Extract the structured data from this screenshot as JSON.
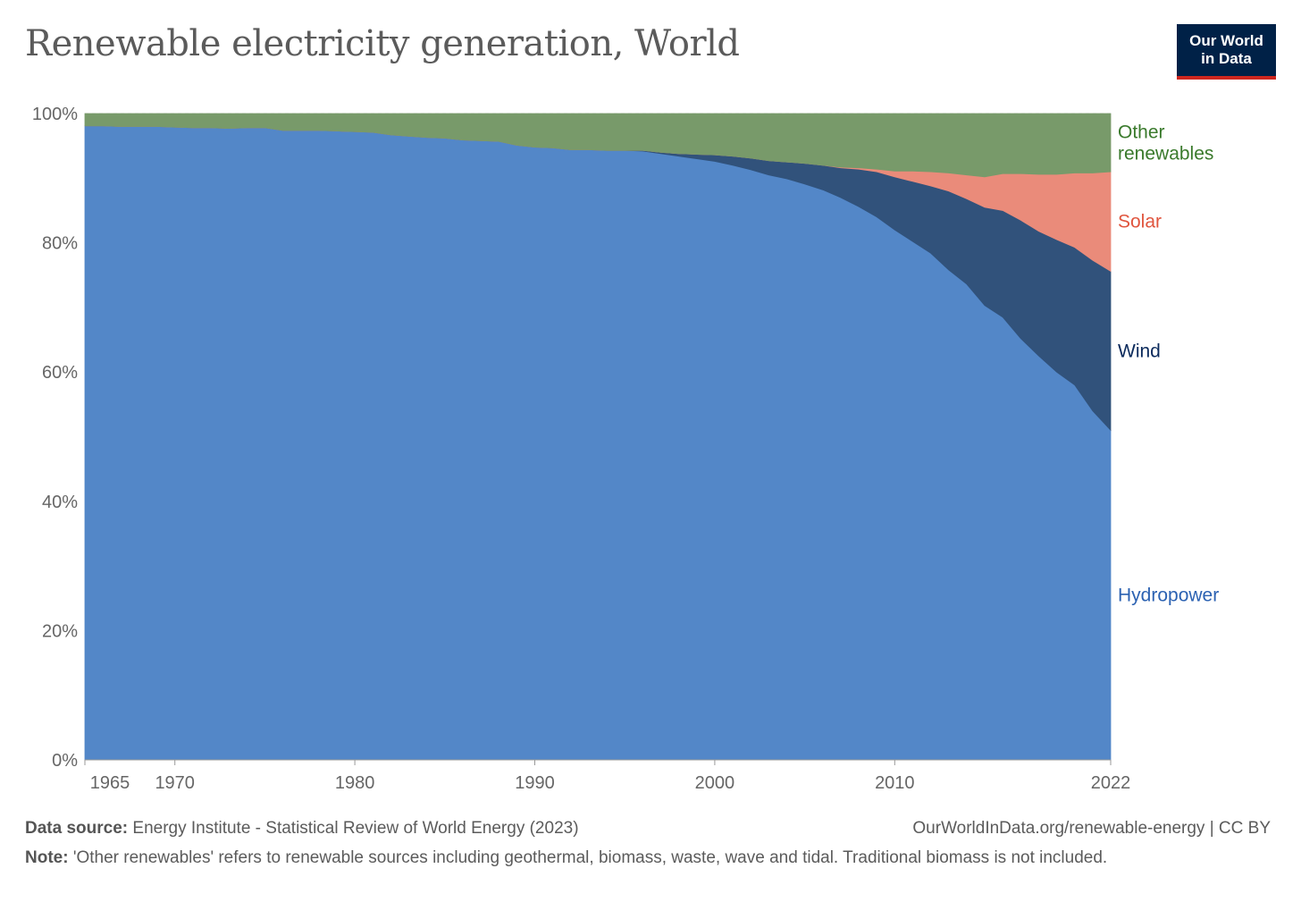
{
  "header": {
    "title": "Renewable electricity generation, World",
    "logo_line1": "Our World",
    "logo_line2": "in Data"
  },
  "footer": {
    "source_label": "Data source:",
    "source_text": "Energy Institute - Statistical Review of World Energy (2023)",
    "url": "OurWorldInData.org/renewable-energy | CC BY",
    "note_label": "Note:",
    "note_text": "'Other renewables' refers to renewable sources including geothermal, biomass, waste, wave and tidal. Traditional biomass is not included."
  },
  "chart_data": {
    "type": "area",
    "stacked": true,
    "relative": true,
    "title": "Renewable electricity generation, World",
    "xlabel": "",
    "ylabel": "",
    "ylim": [
      0,
      100
    ],
    "xlim": [
      1965,
      2022
    ],
    "y_ticks": [
      "0%",
      "20%",
      "40%",
      "60%",
      "80%",
      "100%"
    ],
    "y_tick_values": [
      0,
      20,
      40,
      60,
      80,
      100
    ],
    "x_ticks": [
      "1965",
      "1970",
      "1980",
      "1990",
      "2000",
      "2010",
      "2022"
    ],
    "x_tick_values": [
      1965,
      1970,
      1980,
      1990,
      2000,
      2010,
      2022
    ],
    "grid": true,
    "legend": "right",
    "x": [
      1965,
      1966,
      1967,
      1968,
      1969,
      1970,
      1971,
      1972,
      1973,
      1974,
      1975,
      1976,
      1977,
      1978,
      1979,
      1980,
      1981,
      1982,
      1983,
      1984,
      1985,
      1986,
      1987,
      1988,
      1989,
      1990,
      1991,
      1992,
      1993,
      1994,
      1995,
      1996,
      1997,
      1998,
      1999,
      2000,
      2001,
      2002,
      2003,
      2004,
      2005,
      2006,
      2007,
      2008,
      2009,
      2010,
      2011,
      2012,
      2013,
      2014,
      2015,
      2016,
      2017,
      2018,
      2019,
      2020,
      2021,
      2022
    ],
    "series": [
      {
        "name": "Hydropower",
        "color": "#5387c8",
        "label_color": "#2c62b2",
        "values": [
          98.1,
          98.1,
          98.0,
          98.0,
          98.0,
          97.9,
          97.8,
          97.8,
          97.7,
          97.8,
          97.8,
          97.4,
          97.4,
          97.4,
          97.3,
          97.2,
          97.1,
          96.7,
          96.5,
          96.3,
          96.2,
          95.9,
          95.8,
          95.7,
          95.1,
          94.8,
          94.7,
          94.4,
          94.4,
          94.3,
          94.3,
          94.2,
          93.8,
          93.4,
          93.0,
          92.6,
          92.0,
          91.3,
          90.5,
          89.9,
          89.1,
          88.2,
          87.0,
          85.6,
          84.0,
          82.0,
          80.2,
          78.4,
          75.8,
          73.6,
          70.3,
          68.5,
          65.2,
          62.5,
          60.0,
          58.0,
          54.0,
          51.0
        ]
      },
      {
        "name": "Wind",
        "color": "#31527b",
        "label_color": "#0b2a5c",
        "values": [
          0,
          0,
          0,
          0,
          0,
          0,
          0,
          0,
          0,
          0,
          0,
          0,
          0,
          0,
          0,
          0,
          0,
          0,
          0,
          0,
          0,
          0,
          0,
          0,
          0,
          0,
          0,
          0,
          0,
          0,
          0,
          0.1,
          0.2,
          0.4,
          0.7,
          1.0,
          1.4,
          1.8,
          2.2,
          2.6,
          3.2,
          3.8,
          4.6,
          5.8,
          7.0,
          8.2,
          9.3,
          10.4,
          12.2,
          13.2,
          15.2,
          16.5,
          18.3,
          19.3,
          20.5,
          21.3,
          23.3,
          24.6
        ]
      },
      {
        "name": "Solar",
        "color": "#ea8b7a",
        "label_color": "#e0553e",
        "values": [
          0,
          0,
          0,
          0,
          0,
          0,
          0,
          0,
          0,
          0,
          0,
          0,
          0,
          0,
          0,
          0,
          0,
          0,
          0,
          0,
          0,
          0,
          0,
          0,
          0,
          0,
          0,
          0,
          0,
          0,
          0,
          0,
          0,
          0,
          0,
          0,
          0,
          0,
          0,
          0,
          0,
          0,
          0.1,
          0.2,
          0.4,
          0.9,
          1.6,
          2.2,
          2.8,
          3.7,
          4.7,
          5.7,
          7.2,
          8.8,
          10.1,
          11.5,
          13.5,
          15.4
        ]
      },
      {
        "name": "Other renewables",
        "label_lines": [
          "Other",
          "renewables"
        ],
        "color": "#789a6a",
        "label_color": "#3a7a2c",
        "values": [
          1.9,
          1.9,
          2.0,
          2.0,
          2.0,
          2.1,
          2.2,
          2.2,
          2.3,
          2.2,
          2.2,
          2.6,
          2.6,
          2.6,
          2.7,
          2.8,
          2.9,
          3.3,
          3.5,
          3.7,
          3.8,
          4.1,
          4.2,
          4.3,
          4.9,
          5.2,
          5.3,
          5.6,
          5.6,
          5.7,
          5.7,
          5.7,
          6.0,
          6.2,
          6.3,
          6.4,
          6.6,
          6.9,
          7.3,
          7.5,
          7.7,
          8.0,
          8.3,
          8.4,
          8.6,
          8.9,
          8.9,
          9.0,
          9.2,
          9.5,
          9.8,
          9.3,
          9.3,
          9.4,
          9.4,
          9.2,
          9.2,
          9.0
        ]
      }
    ]
  }
}
